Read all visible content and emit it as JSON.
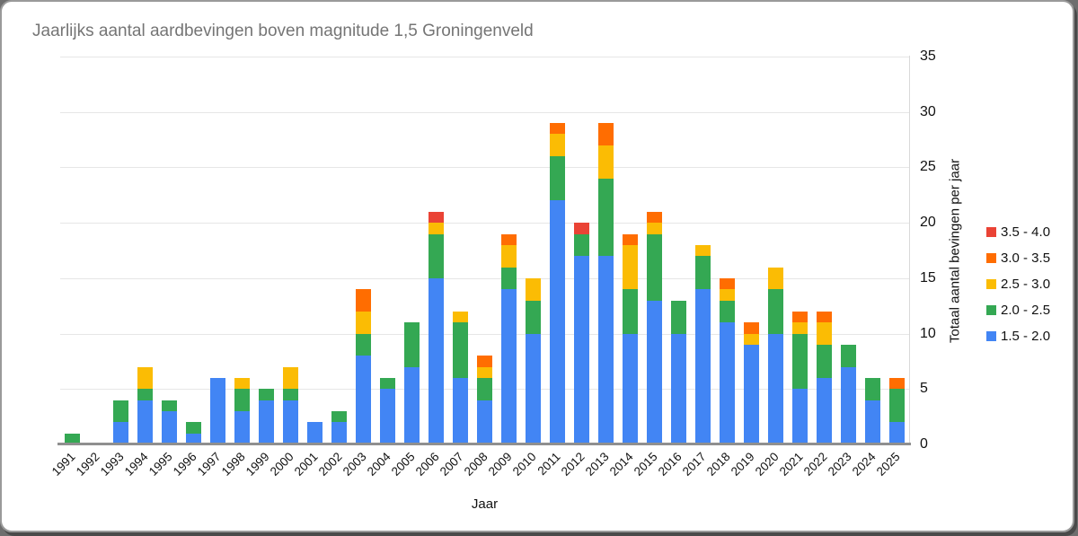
{
  "card_background": "#ffffff",
  "chart_data": {
    "type": "bar",
    "stacked": true,
    "title": "Jaarlijks aantal aardbevingen boven magnitude 1,5 Groningenveld",
    "xlabel": "Jaar",
    "ylabel": "Totaal aantal bevingen per jaar",
    "ylim": [
      0,
      35
    ],
    "yticks": [
      0,
      5,
      10,
      15,
      20,
      25,
      30,
      35
    ],
    "grid": true,
    "legend_position": "right",
    "legend_order_top_to_bottom": [
      "3.5 - 4.0",
      "3.0 - 3.5",
      "2.5 - 3.0",
      "2.0 - 2.5",
      "1.5 - 2.0"
    ],
    "categories": [
      1991,
      1992,
      1993,
      1994,
      1995,
      1996,
      1997,
      1998,
      1999,
      2000,
      2001,
      2002,
      2003,
      2004,
      2005,
      2006,
      2007,
      2008,
      2009,
      2010,
      2011,
      2012,
      2013,
      2014,
      2015,
      2016,
      2017,
      2018,
      2019,
      2020,
      2021,
      2022,
      2023,
      2024,
      2025
    ],
    "series": [
      {
        "name": "1.5 - 2.0",
        "color": "#4285F4",
        "values": [
          0,
          0,
          2,
          4,
          3,
          1,
          6,
          3,
          4,
          4,
          2,
          2,
          8,
          5,
          7,
          15,
          6,
          4,
          14,
          10,
          22,
          17,
          17,
          10,
          13,
          10,
          14,
          11,
          9,
          10,
          5,
          6,
          7,
          4,
          2
        ]
      },
      {
        "name": "2.0 - 2.5",
        "color": "#34A853",
        "values": [
          1,
          0,
          2,
          1,
          1,
          1,
          0,
          2,
          1,
          1,
          0,
          1,
          2,
          1,
          4,
          4,
          5,
          2,
          2,
          3,
          4,
          2,
          7,
          4,
          6,
          3,
          3,
          2,
          0,
          4,
          5,
          3,
          2,
          2,
          3
        ]
      },
      {
        "name": "2.5 - 3.0",
        "color": "#FBBC04",
        "values": [
          0,
          0,
          0,
          2,
          0,
          0,
          0,
          1,
          0,
          2,
          0,
          0,
          2,
          0,
          0,
          1,
          1,
          1,
          2,
          2,
          2,
          0,
          3,
          4,
          1,
          0,
          1,
          1,
          1,
          2,
          1,
          2,
          0,
          0,
          0
        ]
      },
      {
        "name": "3.0 - 3.5",
        "color": "#FF6D01",
        "values": [
          0,
          0,
          0,
          0,
          0,
          0,
          0,
          0,
          0,
          0,
          0,
          0,
          2,
          0,
          0,
          0,
          0,
          1,
          1,
          0,
          1,
          0,
          2,
          1,
          1,
          0,
          0,
          1,
          1,
          0,
          1,
          1,
          0,
          0,
          1
        ]
      },
      {
        "name": "3.5 - 4.0",
        "color": "#EA4335",
        "values": [
          0,
          0,
          0,
          0,
          0,
          0,
          0,
          0,
          0,
          0,
          0,
          0,
          0,
          0,
          0,
          1,
          0,
          0,
          0,
          0,
          0,
          1,
          0,
          0,
          0,
          0,
          0,
          0,
          0,
          0,
          0,
          0,
          0,
          0,
          0
        ]
      }
    ]
  },
  "colors": {
    "title_text": "#757575",
    "axis_text": "#111111",
    "gridline": "#e6e6e6",
    "baseline": "#8f8f8f"
  }
}
